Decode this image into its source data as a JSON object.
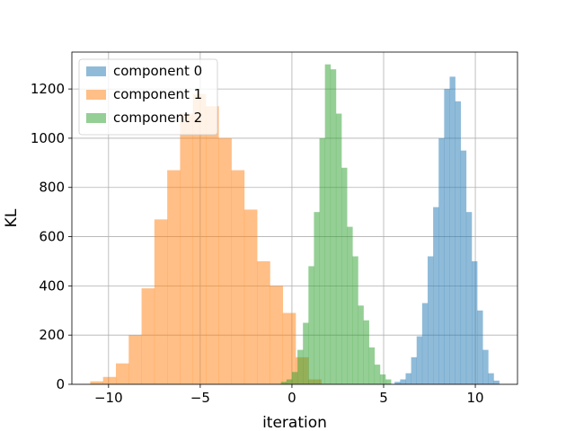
{
  "chart_data": {
    "type": "bar",
    "title": "",
    "xlabel": "iteration",
    "ylabel": "KL",
    "xlim": [
      -12.0,
      12.3
    ],
    "ylim": [
      0,
      1350
    ],
    "xticks": [
      -10,
      -5,
      0,
      5,
      10
    ],
    "xtick_labels": [
      "−10",
      "−5",
      "0",
      "5",
      "10"
    ],
    "yticks": [
      0,
      200,
      400,
      600,
      800,
      1000,
      1200
    ],
    "ytick_labels": [
      "0",
      "200",
      "400",
      "600",
      "800",
      "1000",
      "1200"
    ],
    "grid": true,
    "legend_position": "top-left",
    "bar_alpha": 0.5,
    "series": [
      {
        "name": "component 0",
        "color": "#1f77b4",
        "bin_edges": [
          5.6,
          5.9,
          6.2,
          6.5,
          6.8,
          7.1,
          7.4,
          7.7,
          8.0,
          8.3,
          8.6,
          8.9,
          9.2,
          9.5,
          9.8,
          10.1,
          10.4,
          10.7,
          11.0,
          11.3
        ],
        "counts": [
          10,
          20,
          45,
          110,
          195,
          330,
          520,
          720,
          1000,
          1200,
          1250,
          1150,
          950,
          700,
          500,
          300,
          140,
          45,
          15
        ]
      },
      {
        "name": "component 1",
        "color": "#ff7f0e",
        "bin_edges": [
          -11.0,
          -10.3,
          -9.6,
          -8.9,
          -8.2,
          -7.5,
          -6.8,
          -6.1,
          -5.4,
          -4.7,
          -4.0,
          -3.3,
          -2.6,
          -1.9,
          -1.2,
          -0.5,
          0.2,
          0.9,
          1.6
        ],
        "counts": [
          12,
          30,
          85,
          200,
          390,
          670,
          870,
          1100,
          1180,
          1130,
          1000,
          870,
          710,
          500,
          400,
          290,
          110,
          20
        ]
      },
      {
        "name": "component 2",
        "color": "#2ca02c",
        "bin_edges": [
          -0.6,
          -0.3,
          0.0,
          0.3,
          0.6,
          0.9,
          1.2,
          1.5,
          1.8,
          2.1,
          2.4,
          2.7,
          3.0,
          3.3,
          3.6,
          3.9,
          4.2,
          4.5,
          4.8,
          5.1,
          5.4
        ],
        "counts": [
          10,
          20,
          50,
          140,
          250,
          480,
          700,
          1000,
          1300,
          1280,
          1100,
          880,
          640,
          520,
          320,
          260,
          150,
          80,
          40,
          20
        ]
      }
    ]
  }
}
